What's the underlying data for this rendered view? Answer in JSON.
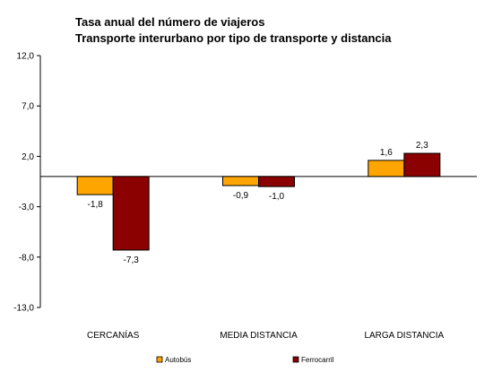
{
  "chart_data": {
    "type": "bar",
    "title": "Tasa anual del número de viajeros",
    "subtitle": "Transporte interurbano por tipo de transporte y distancia",
    "categories": [
      "CERCANÍAS",
      "MEDIA DISTANCIA",
      "LARGA DISTANCIA"
    ],
    "series": [
      {
        "name": "Autobús",
        "values": [
          -1.8,
          -0.9,
          1.6
        ],
        "labels": [
          "-1,8",
          "-0,9",
          "1,6"
        ],
        "color": "#FFA500"
      },
      {
        "name": "Ferrocarril",
        "values": [
          -7.3,
          -1.0,
          2.3
        ],
        "labels": [
          "-7,3",
          "-1,0",
          "2,3"
        ],
        "color": "#8B0000"
      }
    ],
    "ylim": [
      -13,
      12
    ],
    "yticks": [
      12,
      7,
      2,
      -3,
      -8,
      -13
    ],
    "ytick_labels": [
      "12,0",
      "7,0",
      "2,0",
      "-3,0",
      "-8,0",
      "-13,0"
    ],
    "xlabel": "",
    "ylabel": "",
    "grid": false,
    "legend_position": "bottom"
  }
}
